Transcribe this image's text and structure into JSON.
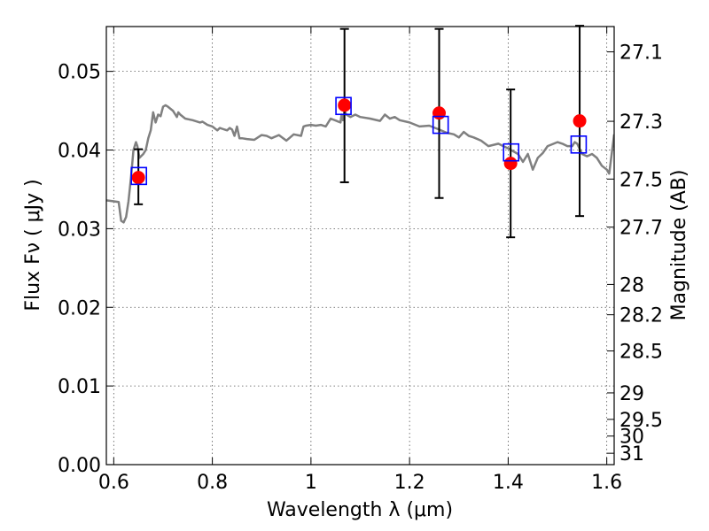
{
  "chart_data": {
    "type": "scatter",
    "title": "",
    "xlabel": "Wavelength  λ (μm)",
    "ylabel": "Flux  Fν  ( μJy )",
    "y2label": "Magnitude (AB)",
    "xlim": [
      0.585,
      1.615
    ],
    "ylim": [
      0.0,
      0.0557
    ],
    "grid": true,
    "x_ticks": [
      0.6,
      0.8,
      1.0,
      1.2,
      1.4,
      1.6
    ],
    "x_tick_labels": [
      "0.6",
      "0.8",
      "1",
      "1.2",
      "1.4",
      "1.6"
    ],
    "y_ticks": [
      0.0,
      0.01,
      0.02,
      0.03,
      0.04,
      0.05
    ],
    "y_tick_labels": [
      "0.00",
      "0.01",
      "0.02",
      "0.03",
      "0.04",
      "0.05"
    ],
    "y2_ticks": [
      "27.1",
      "27.3",
      "27.5",
      "27.7",
      "28",
      "28.2",
      "28.5",
      "29",
      "29.5",
      "30",
      "31"
    ],
    "colors": {
      "spectrum": "#808080",
      "observed": "#ff0000",
      "model": "#0000ff",
      "errorbar": "#000000",
      "grid": "#555555"
    },
    "series": [
      {
        "kind": "spectrum",
        "x": [
          0.585,
          0.61,
          0.615,
          0.62,
          0.625,
          0.63,
          0.635,
          0.64,
          0.645,
          0.648,
          0.652,
          0.66,
          0.665,
          0.67,
          0.675,
          0.68,
          0.685,
          0.69,
          0.695,
          0.7,
          0.705,
          0.71,
          0.72,
          0.725,
          0.728,
          0.731,
          0.735,
          0.745,
          0.76,
          0.775,
          0.78,
          0.79,
          0.8,
          0.81,
          0.815,
          0.82,
          0.83,
          0.835,
          0.84,
          0.845,
          0.85,
          0.855,
          0.86,
          0.87,
          0.885,
          0.9,
          0.91,
          0.92,
          0.935,
          0.95,
          0.965,
          0.98,
          0.985,
          0.99,
          1.0,
          1.01,
          1.02,
          1.03,
          1.04,
          1.06,
          1.062,
          1.065,
          1.068,
          1.072,
          1.08,
          1.09,
          1.1,
          1.12,
          1.14,
          1.15,
          1.16,
          1.17,
          1.18,
          1.2,
          1.22,
          1.24,
          1.26,
          1.275,
          1.29,
          1.3,
          1.31,
          1.32,
          1.33,
          1.345,
          1.36,
          1.38,
          1.4,
          1.42,
          1.43,
          1.44,
          1.45,
          1.46,
          1.47,
          1.48,
          1.5,
          1.51,
          1.52,
          1.53,
          1.535,
          1.54,
          1.55,
          1.56,
          1.57,
          1.58,
          1.59,
          1.6,
          1.605,
          1.615
        ],
        "y": [
          0.0336,
          0.0334,
          0.031,
          0.0308,
          0.0315,
          0.0335,
          0.0365,
          0.04,
          0.041,
          0.0405,
          0.039,
          0.0395,
          0.04,
          0.0415,
          0.0425,
          0.0448,
          0.0435,
          0.0445,
          0.0443,
          0.0455,
          0.0457,
          0.0455,
          0.045,
          0.0445,
          0.0442,
          0.0448,
          0.0445,
          0.044,
          0.0438,
          0.0435,
          0.0436,
          0.0432,
          0.043,
          0.0425,
          0.0428,
          0.0427,
          0.0425,
          0.0428,
          0.0426,
          0.0418,
          0.043,
          0.0415,
          0.0415,
          0.0414,
          0.0413,
          0.0419,
          0.0418,
          0.0415,
          0.0419,
          0.0412,
          0.042,
          0.0418,
          0.043,
          0.0431,
          0.0432,
          0.0431,
          0.0432,
          0.043,
          0.044,
          0.0435,
          0.0445,
          0.0438,
          0.045,
          0.0445,
          0.0442,
          0.0445,
          0.0442,
          0.044,
          0.0437,
          0.0445,
          0.044,
          0.0442,
          0.0438,
          0.0435,
          0.043,
          0.0431,
          0.0426,
          0.0422,
          0.042,
          0.0416,
          0.0423,
          0.0418,
          0.0416,
          0.0412,
          0.0405,
          0.0408,
          0.0402,
          0.0395,
          0.0385,
          0.0395,
          0.0375,
          0.039,
          0.0396,
          0.0405,
          0.041,
          0.0408,
          0.0405,
          0.0405,
          0.041,
          0.0408,
          0.0395,
          0.0392,
          0.0395,
          0.039,
          0.038,
          0.0375,
          0.037,
          0.042
        ]
      },
      {
        "kind": "observed",
        "x": [
          0.65,
          1.068,
          1.26,
          1.405,
          1.545
        ],
        "y": [
          0.0365,
          0.0457,
          0.0447,
          0.0383,
          0.0437
        ],
        "yerr_low": [
          0.0034,
          0.0098,
          0.0108,
          0.0094,
          0.0121
        ],
        "yerr_high": [
          0.0036,
          0.0097,
          0.0107,
          0.0094,
          0.0121
        ]
      },
      {
        "kind": "model",
        "x": [
          0.651,
          1.066,
          1.263,
          1.406,
          1.543
        ],
        "y": [
          0.0367,
          0.0456,
          0.0432,
          0.0397,
          0.0407
        ]
      }
    ]
  }
}
